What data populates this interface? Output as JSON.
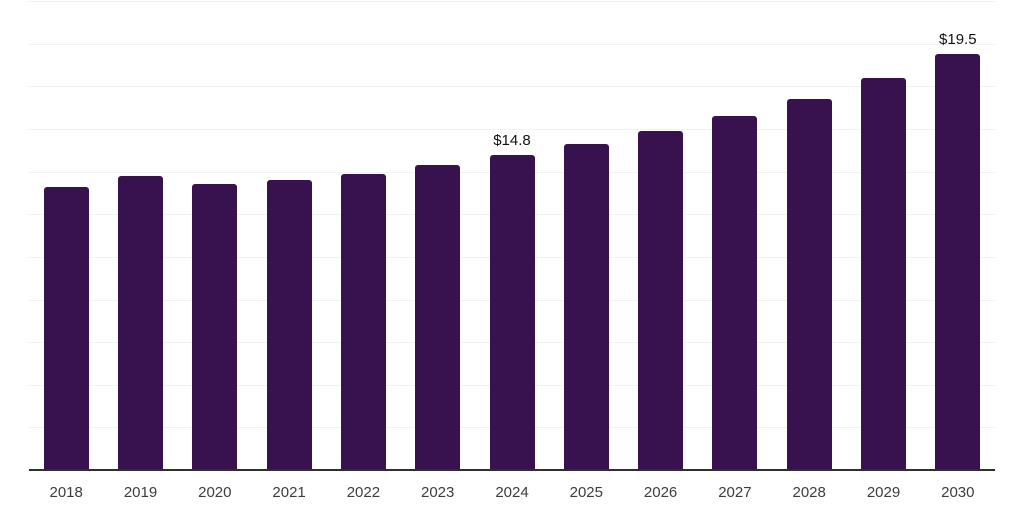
{
  "chart_data": {
    "type": "bar",
    "categories": [
      "2018",
      "2019",
      "2020",
      "2021",
      "2022",
      "2023",
      "2024",
      "2025",
      "2026",
      "2027",
      "2028",
      "2029",
      "2030"
    ],
    "values": [
      13.3,
      13.8,
      13.4,
      13.6,
      13.9,
      14.3,
      14.8,
      15.3,
      15.9,
      16.6,
      17.4,
      18.4,
      19.5
    ],
    "data_labels": [
      {
        "category": "2024",
        "text": "$14.8"
      },
      {
        "category": "2030",
        "text": "$19.5"
      }
    ],
    "xlabel": "",
    "ylabel": "",
    "ylim": [
      0,
      22
    ],
    "y_gridline_step": 2,
    "grid": true,
    "legend": false,
    "colors": {
      "bar": "#38124e",
      "gridline": "#f2f2f2",
      "axis": "#2e2e2e",
      "tick_label": "#3d3d3d",
      "data_label": "#111111",
      "background": "#ffffff"
    }
  }
}
